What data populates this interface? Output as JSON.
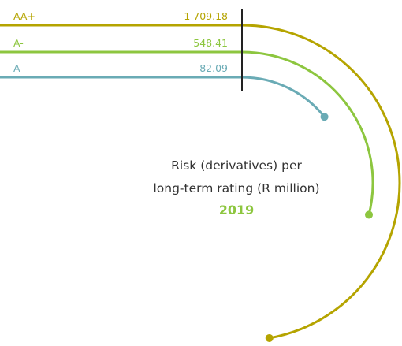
{
  "chart_data": {
    "type": "radial-bar",
    "title_lines": [
      "Risk (derivatives) per",
      "long-term rating (R million)"
    ],
    "year": "2019",
    "series": [
      {
        "label": "AA+",
        "value_label": "1 709.18",
        "value": 1709.18,
        "color": "#B5A400"
      },
      {
        "label": "A-",
        "value_label": "548.41",
        "value": 548.41,
        "color": "#8DC63F"
      },
      {
        "label": "A",
        "value_label": "82.09",
        "value": 82.09,
        "color": "#6AABB5"
      }
    ],
    "colors": {
      "divider": "#222222",
      "year": "#8DC63F",
      "title": "#333333"
    }
  }
}
